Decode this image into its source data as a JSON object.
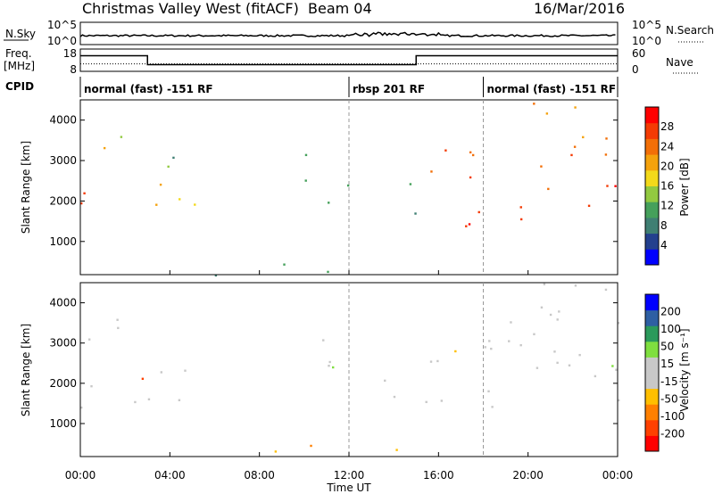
{
  "header": {
    "title": "Christmas Valley West (fitACF)",
    "beam": "Beam 04",
    "date": "16/Mar/2016"
  },
  "sky_panel": {
    "left_label": "N.Sky",
    "tick_top": "10^5",
    "tick_bottom": "10^0",
    "right_label": "N.Search",
    "right_tick_top": "10^5",
    "right_tick_bottom": "10^0"
  },
  "freq_panel": {
    "left_label_1": "Freq.",
    "left_label_2": "[MHz]",
    "tick_top": "18",
    "tick_bottom": "8",
    "right_label": "Nave",
    "right_tick_top": "60",
    "right_tick_bottom": "0"
  },
  "cpid": {
    "label": "CPID",
    "segments": [
      {
        "start": 0,
        "end": 12,
        "text": "normal (fast) -151 RF"
      },
      {
        "start": 12,
        "end": 18,
        "text": "rbsp 201 RF"
      },
      {
        "start": 18,
        "end": 24,
        "text": "normal (fast) -151 RF"
      }
    ]
  },
  "power_scale": {
    "label": "Power [dB]",
    "colors": [
      "#0000ff",
      "#23408e",
      "#3f7f73",
      "#45a05b",
      "#92c940",
      "#f3d91a",
      "#f4a20d",
      "#f26f08",
      "#f43b04",
      "#ff0000"
    ],
    "ticks": [
      "4",
      "8",
      "12",
      "16",
      "20",
      "24",
      "28"
    ]
  },
  "velocity_scale": {
    "label": "Velocity [m s⁻¹]",
    "colors": [
      "#ff0000",
      "#ff4000",
      "#ff8000",
      "#ffbf00",
      "#c8c8c8",
      "#c8c8c8",
      "#7fdf3f",
      "#2b9a5b",
      "#2e5fa3",
      "#0000ff"
    ],
    "ticks": [
      "-200",
      "-100",
      "-50",
      "-15",
      "15",
      "50",
      "100",
      "200"
    ]
  },
  "chart_data": {
    "type": "heatmap",
    "xlabel": "Time UT",
    "ylabel": "Slant Range [km]",
    "x_ticks": [
      "00:00",
      "04:00",
      "08:00",
      "12:00",
      "16:00",
      "20:00",
      "00:00"
    ],
    "y_ticks": [
      1000,
      2000,
      3000,
      4000
    ],
    "xlim_hours": [
      0,
      24
    ],
    "ylim_km": [
      180,
      4500
    ],
    "frequency_mhz": [
      {
        "start": 0,
        "end": 3,
        "value": 15
      },
      {
        "start": 3,
        "end": 15,
        "value": 11
      },
      {
        "start": 15,
        "end": 24,
        "value": 15
      }
    ],
    "nave": 20,
    "power_echo_bands": [
      {
        "t0": 0.0,
        "t1": 3.0,
        "r0": 1700,
        "r1": 2300,
        "power_db": 27
      },
      {
        "t0": 0.0,
        "t1": 2.0,
        "r0": 3100,
        "r1": 3600,
        "power_db": 22
      },
      {
        "t0": 1.5,
        "t1": 2.5,
        "r0": 3500,
        "r1": 4000,
        "power_db": 14
      },
      {
        "t0": 3.0,
        "t1": 5.5,
        "r0": 1400,
        "r1": 2800,
        "power_db": 19
      },
      {
        "t0": 3.5,
        "t1": 5.5,
        "r0": 2300,
        "r1": 3300,
        "power_db": 12
      },
      {
        "t0": 4.5,
        "t1": 4.8,
        "r0": 3900,
        "r1": 4200,
        "power_db": 8
      },
      {
        "t0": 10.0,
        "t1": 12.0,
        "r0": 1800,
        "r1": 3700,
        "power_db": 9
      },
      {
        "t0": 13.5,
        "t1": 15.0,
        "r0": 1400,
        "r1": 2500,
        "power_db": 10
      },
      {
        "t0": 15.0,
        "t1": 17.5,
        "r0": 1400,
        "r1": 3600,
        "power_db": 26
      },
      {
        "t0": 17.0,
        "t1": 24.0,
        "r0": 1400,
        "r1": 2400,
        "power_db": 28
      },
      {
        "t0": 19.5,
        "t1": 24.0,
        "r0": 2700,
        "r1": 4500,
        "power_db": 23
      },
      {
        "t0": 6.0,
        "t1": 15.0,
        "r0": 180,
        "r1": 500,
        "power_db": 10
      }
    ],
    "velocity_echo_bands": [
      {
        "t0": 0.0,
        "t1": 5.5,
        "r0": 1400,
        "r1": 2300,
        "velocity": 0
      },
      {
        "t0": 0.0,
        "t1": 3.0,
        "r0": 3000,
        "r1": 4000,
        "velocity": 0
      },
      {
        "t0": 3.5,
        "t1": 5.5,
        "r0": 2200,
        "r1": 3300,
        "velocity": 0
      },
      {
        "t0": 10.0,
        "t1": 12.0,
        "r0": 1800,
        "r1": 3700,
        "velocity": 0
      },
      {
        "t0": 13.5,
        "t1": 15.0,
        "r0": 1400,
        "r1": 2500,
        "velocity": 0
      },
      {
        "t0": 15.0,
        "t1": 24.0,
        "r0": 1400,
        "r1": 3600,
        "velocity": 0
      },
      {
        "t0": 19.5,
        "t1": 24.0,
        "r0": 2700,
        "r1": 4500,
        "velocity": 0
      },
      {
        "t0": 6.0,
        "t1": 15.0,
        "r0": 180,
        "r1": 500,
        "velocity": -40
      }
    ]
  }
}
